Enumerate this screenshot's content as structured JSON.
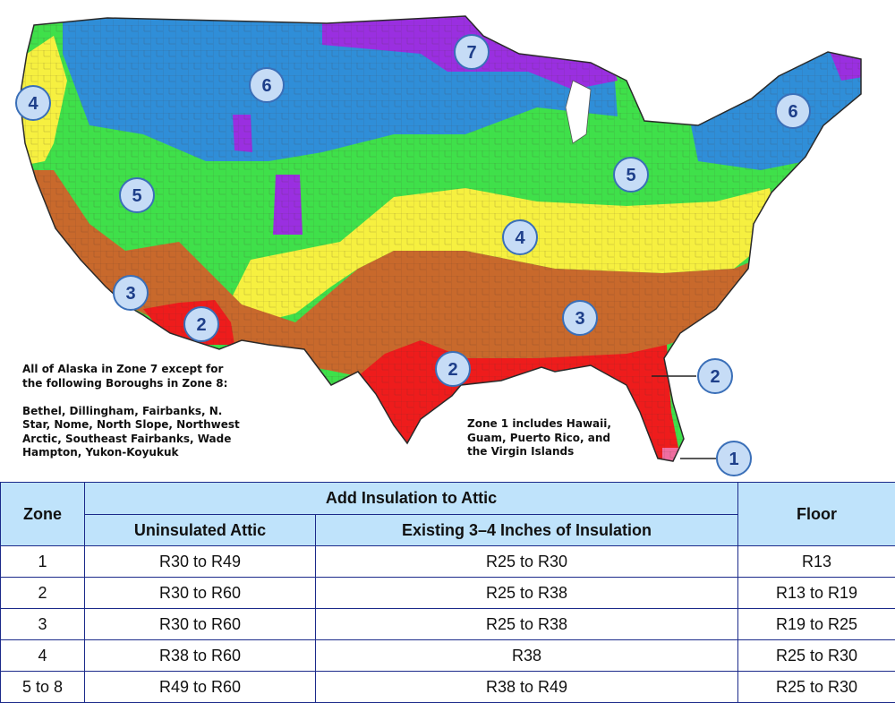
{
  "map": {
    "alaska_note": "All of Alaska in Zone 7 except for\nthe following Boroughs in Zone 8:\n\nBethel, Dillingham, Fairbanks, N.\nStar, Nome, North Slope, Northwest\nArctic, Southeast Fairbanks, Wade\nHampton, Yukon-Koyukuk",
    "zone1_note": "Zone 1 includes Hawaii,\nGuam, Puerto Rico, and\nthe Virgin Islands",
    "zone_colors": {
      "1": "#f06ea0",
      "2": "#ee1c1c",
      "3": "#c8692c",
      "4": "#f6f040",
      "5": "#3fe04a",
      "6": "#2f8ed8",
      "7": "#9a2fe0"
    },
    "badges": [
      "7",
      "6",
      "4",
      "6",
      "5",
      "5",
      "4",
      "3",
      "2",
      "3",
      "2",
      "2",
      "1"
    ]
  },
  "table": {
    "zone_header": "Zone",
    "attic_header": "Add Insulation to Attic",
    "uninsulated_header": "Uninsulated Attic",
    "existing_header": "Existing 3–4 Inches of Insulation",
    "floor_header": "Floor",
    "rows": [
      {
        "zone": "1",
        "uninsulated": "R30 to R49",
        "existing": "R25 to R30",
        "floor": "R13"
      },
      {
        "zone": "2",
        "uninsulated": "R30 to R60",
        "existing": "R25 to R38",
        "floor": "R13 to R19"
      },
      {
        "zone": "3",
        "uninsulated": "R30 to R60",
        "existing": "R25 to R38",
        "floor": "R19 to R25"
      },
      {
        "zone": "4",
        "uninsulated": "R38 to R60",
        "existing": "R38",
        "floor": "R25 to R30"
      },
      {
        "zone": "5 to 8",
        "uninsulated": "R49 to R60",
        "existing": "R38 to R49",
        "floor": "R25 to R30"
      }
    ]
  }
}
